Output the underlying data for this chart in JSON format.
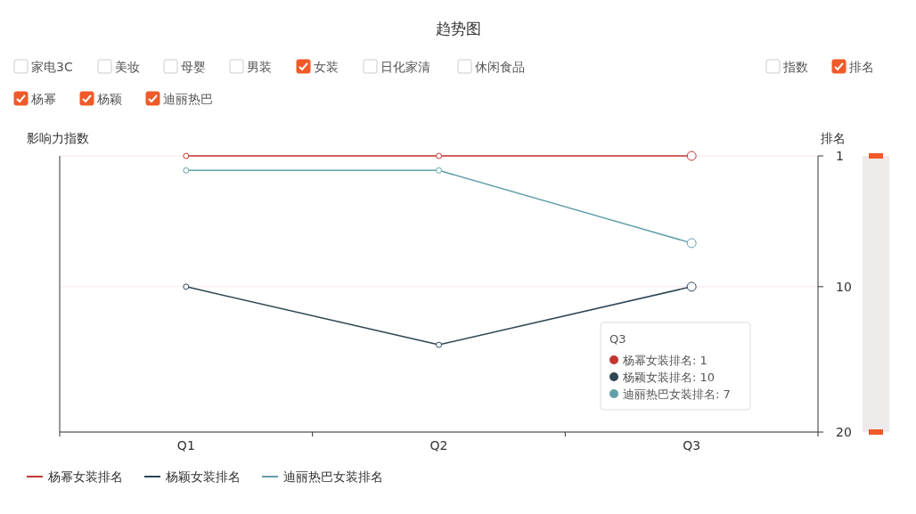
{
  "chart_data": {
    "type": "line",
    "title": "趋势图",
    "categories": [
      "Q1",
      "Q2",
      "Q3"
    ],
    "series": [
      {
        "name": "杨幂女装排名",
        "color": "#c23531",
        "values": [
          1,
          1,
          1
        ],
        "axis": "y2"
      },
      {
        "name": "杨颖女装排名",
        "color": "#2f4554",
        "values": [
          10,
          14,
          10
        ],
        "axis": "y2"
      },
      {
        "name": "迪丽热巴女装排名",
        "color": "#61a0a8",
        "values": [
          2,
          2,
          7
        ],
        "axis": "y2"
      }
    ],
    "ylabel": "影响力指数",
    "y2label": "排名",
    "y2lim": [
      20,
      1
    ],
    "y2ticks": [
      1,
      10,
      20
    ],
    "grid": "y",
    "legend": "bottom left",
    "marker": "circle",
    "line_style": "solid",
    "annotations": [
      "家电3C",
      "美妆",
      "母婴",
      "男装",
      "女装",
      "日化家清",
      "休闲食品",
      "指数",
      "排名",
      "杨幂",
      "杨颖",
      "迪丽热巴",
      "Q3",
      "杨幂女装排名: 1",
      "杨颖女装排名: 10",
      "迪丽热巴女装排名: 7"
    ]
  }
}
